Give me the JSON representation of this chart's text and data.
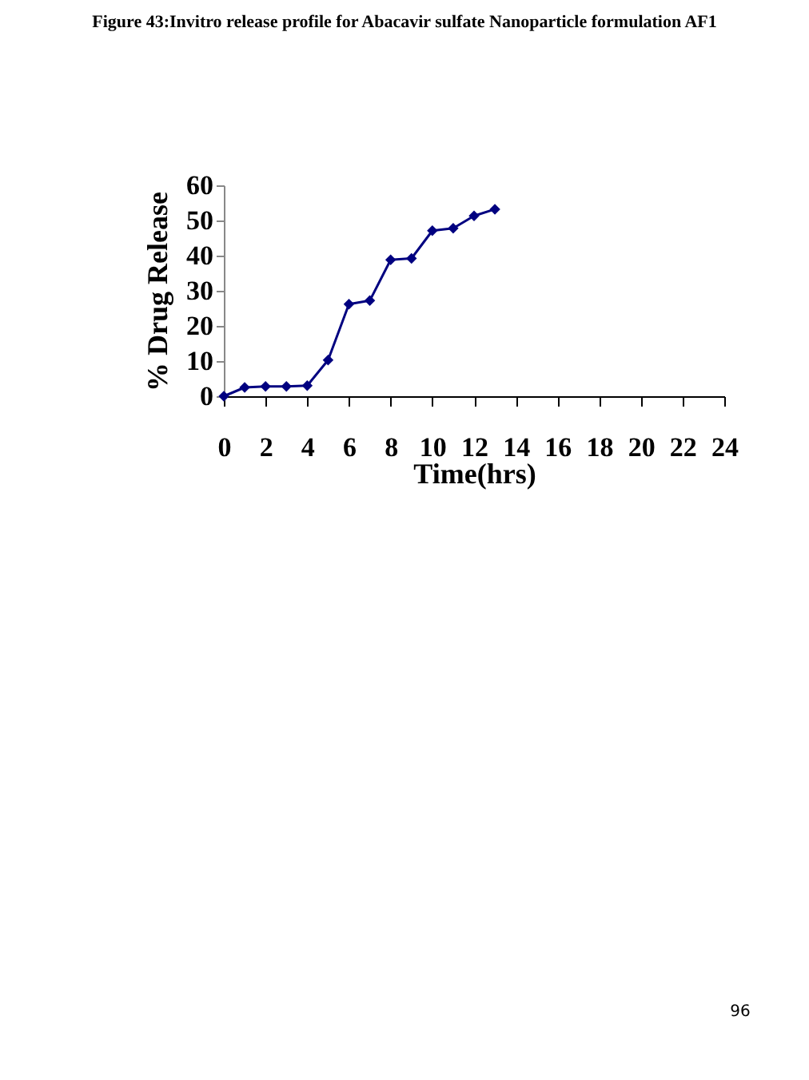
{
  "chart_data": {
    "type": "line",
    "title": "Figure 43:Invitro  release profile for Abacavir sulfate Nanoparticle formulation AF1",
    "xlabel": "Time(hrs)",
    "ylabel": "% Drug Release",
    "x": [
      0,
      1,
      2,
      3,
      4,
      5,
      6,
      7,
      8,
      9,
      10,
      11,
      12,
      13
    ],
    "series": [
      {
        "color": "#000080",
        "values": [
          0,
          2.5,
          2.8,
          2.8,
          3,
          10.3,
          26.2,
          27.2,
          38.8,
          39.2,
          47.1,
          47.8,
          51.3,
          53.2
        ]
      }
    ],
    "xlim": [
      0,
      24
    ],
    "xticks": [
      0,
      2,
      4,
      6,
      8,
      10,
      12,
      14,
      16,
      18,
      20,
      22,
      24
    ],
    "ylim": [
      0,
      60
    ],
    "yticks": [
      0,
      10,
      20,
      30,
      40,
      50,
      60
    ],
    "grid": false,
    "marker": "diamond",
    "line_style": "solid",
    "annotations": [
      "96"
    ]
  }
}
